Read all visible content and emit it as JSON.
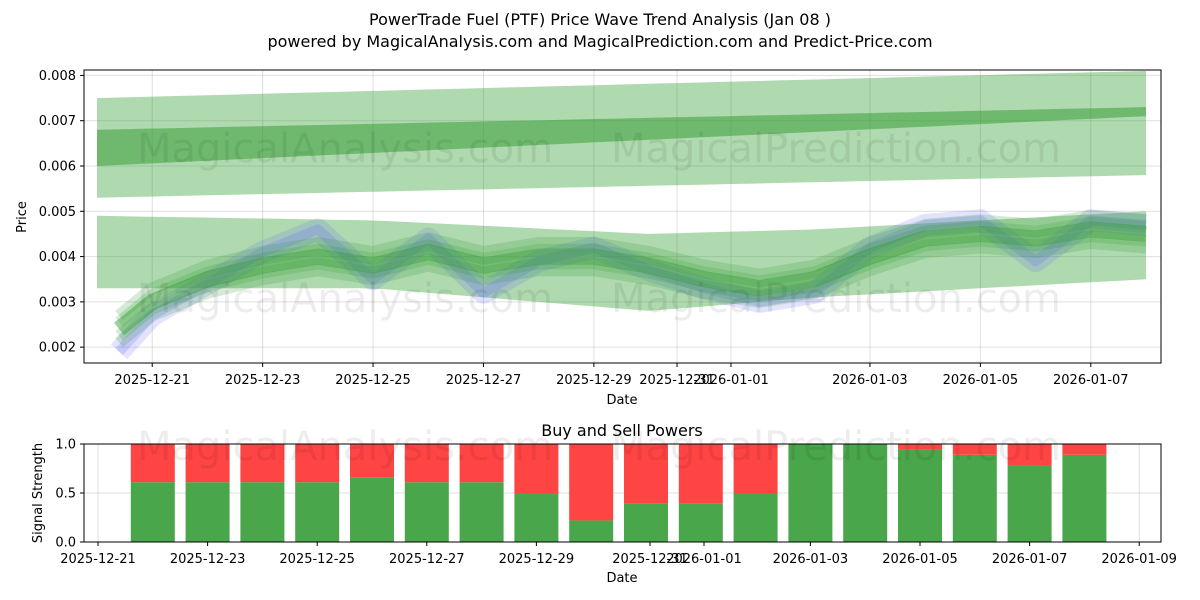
{
  "title": "PowerTrade Fuel (PTF) Price Wave Trend Analysis (Jan 08 )",
  "subtitle": "powered by MagicalAnalysis.com and MagicalPrediction.com and Predict-Price.com",
  "watermarks": [
    "MagicalAnalysis.com",
    "MagicalPrediction.com"
  ],
  "colors": {
    "band": "#2e9a2e",
    "price": "#6666ff",
    "buy": "#4aa64a",
    "sell": "#ff4444"
  },
  "chart_data": [
    {
      "type": "line",
      "title": "",
      "xlabel": "Date",
      "ylabel": "Price",
      "x_domain": [
        "2025-12-19.6",
        "2026-01-09.2"
      ],
      "ylim": [
        0.00165,
        0.00812
      ],
      "yticks": [
        "0.002",
        "0.003",
        "0.004",
        "0.005",
        "0.006",
        "0.007",
        "0.008"
      ],
      "xticks": [
        "2025-12-21",
        "2025-12-23",
        "2025-12-25",
        "2025-12-27",
        "2025-12-29",
        "2025-12-31",
        "2026-01-01",
        "2026-01-03",
        "2026-01-05",
        "2026-01-07"
      ],
      "grid": true,
      "series": [
        {
          "name": "upper wide band",
          "x": [
            0,
            19
          ],
          "low": [
            0.0053,
            0.0058
          ],
          "high": [
            0.0075,
            0.0081
          ]
        },
        {
          "name": "upper trend band",
          "x": [
            0,
            19
          ],
          "low": [
            0.006,
            0.0071
          ],
          "high": [
            0.0068,
            0.0073
          ]
        },
        {
          "name": "lower wide band",
          "x": [
            0,
            5,
            10,
            13,
            19
          ],
          "low": [
            0.0033,
            0.0033,
            0.0028,
            0.0031,
            0.0035
          ],
          "high": [
            0.0049,
            0.0048,
            0.0045,
            0.0046,
            0.005
          ]
        },
        {
          "name": "price",
          "x": [
            0.4,
            1,
            2,
            3,
            4,
            5,
            6,
            7,
            8,
            9,
            10,
            11,
            12,
            13,
            14,
            15,
            16,
            17,
            18,
            19
          ],
          "values": [
            0.0019,
            0.0027,
            0.0034,
            0.0041,
            0.0046,
            0.0035,
            0.0044,
            0.0032,
            0.0039,
            0.0042,
            0.0037,
            0.0033,
            0.003,
            0.0032,
            0.0042,
            0.0047,
            0.0048,
            0.0039,
            0.0048,
            0.0047
          ]
        },
        {
          "name": "wave trend",
          "x": [
            0.4,
            1,
            2,
            3,
            4,
            5,
            6,
            7,
            8,
            9,
            10,
            11,
            12,
            13,
            14,
            15,
            16,
            17,
            18,
            19
          ],
          "values": [
            0.0024,
            0.003,
            0.0035,
            0.0038,
            0.004,
            0.0038,
            0.0041,
            0.0038,
            0.004,
            0.004,
            0.0038,
            0.0035,
            0.0033,
            0.0035,
            0.004,
            0.0044,
            0.0045,
            0.0044,
            0.0046,
            0.0045
          ]
        }
      ]
    },
    {
      "type": "bar",
      "title": "Buy and Sell Powers",
      "xlabel": "Date",
      "ylabel": "Signal Strength",
      "ylim": [
        0,
        1
      ],
      "yticks": [
        "0.0",
        "0.5",
        "1.0"
      ],
      "xticks": [
        "2025-12-21",
        "2025-12-23",
        "2025-12-25",
        "2025-12-27",
        "2025-12-29",
        "2025-12-31",
        "2026-01-01",
        "2026-01-03",
        "2026-01-05",
        "2026-01-07",
        "2026-01-09"
      ],
      "categories": [
        "2025-12-22",
        "2025-12-23",
        "2025-12-24",
        "2025-12-25",
        "2025-12-26",
        "2025-12-27",
        "2025-12-28",
        "2025-12-29",
        "2025-12-30",
        "2025-12-31",
        "2026-01-01",
        "2026-01-02",
        "2026-01-03",
        "2026-01-04",
        "2026-01-05",
        "2026-01-06",
        "2026-01-07",
        "2026-01-08"
      ],
      "series": [
        {
          "name": "Buy",
          "values": [
            0.61,
            0.61,
            0.61,
            0.61,
            0.66,
            0.61,
            0.61,
            0.5,
            0.22,
            0.39,
            0.39,
            0.5,
            1.0,
            1.0,
            0.94,
            0.89,
            0.78,
            0.89
          ]
        },
        {
          "name": "Sell",
          "values": [
            0.39,
            0.39,
            0.39,
            0.39,
            0.34,
            0.39,
            0.39,
            0.5,
            0.78,
            0.61,
            0.61,
            0.5,
            0.0,
            0.0,
            0.06,
            0.11,
            0.22,
            0.11
          ]
        }
      ]
    }
  ]
}
